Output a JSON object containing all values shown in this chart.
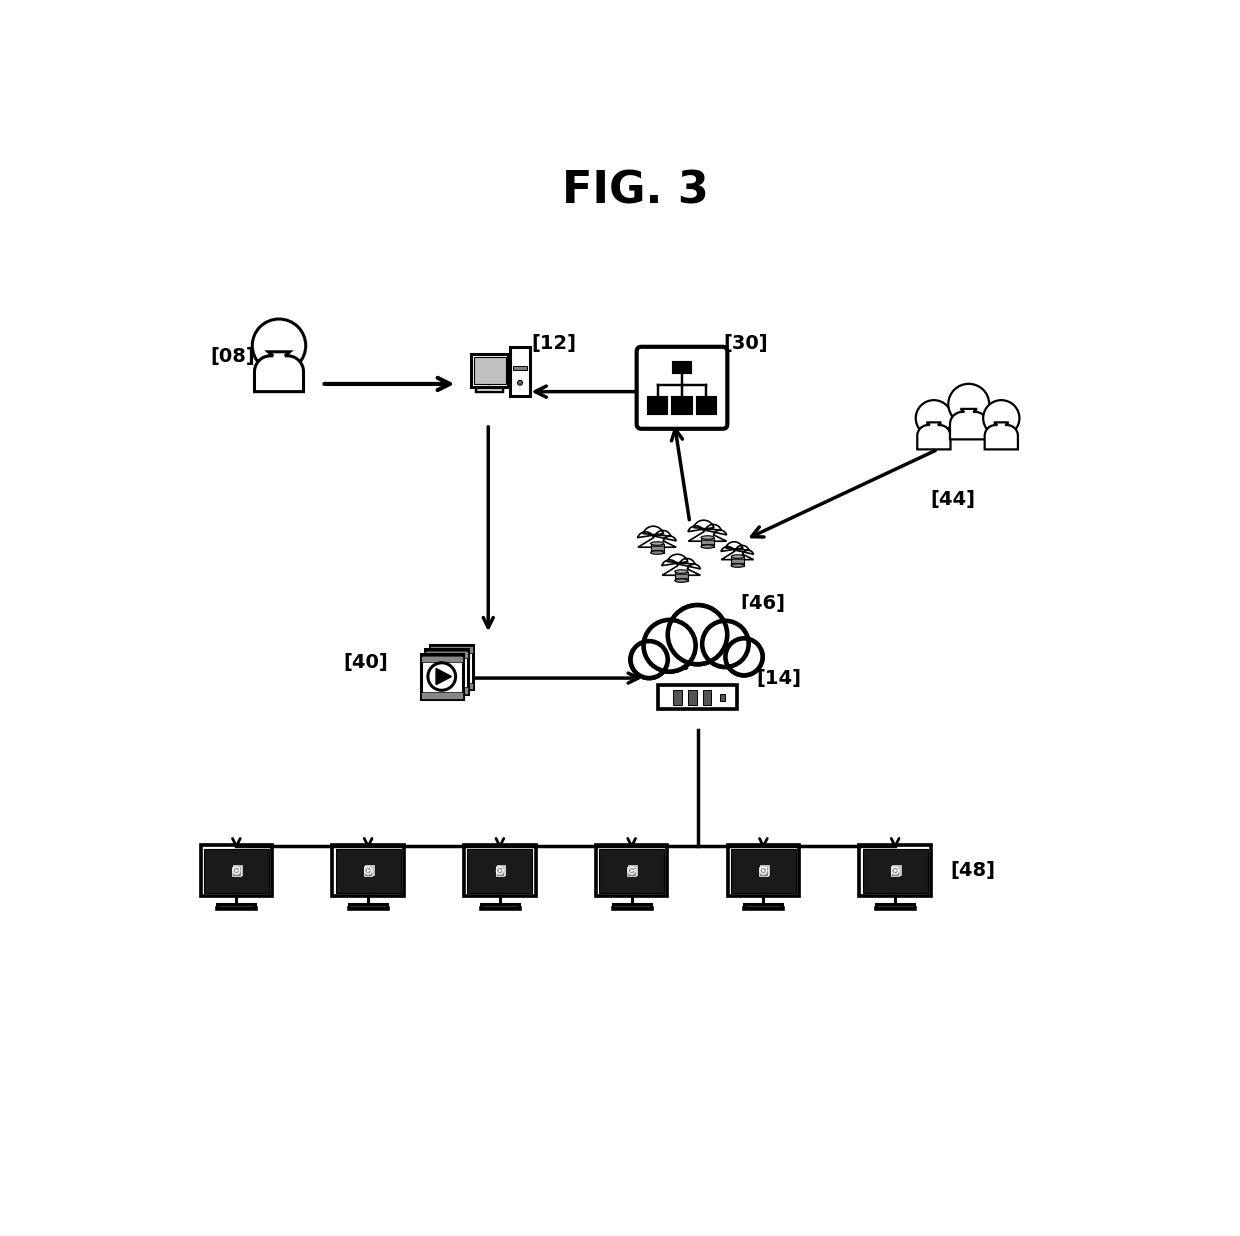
{
  "title": "FIG. 3",
  "title_fontsize": 32,
  "title_fontweight": "bold",
  "bg_color": "#ffffff",
  "fg_color": "#000000",
  "labels": {
    "08": "[08]",
    "12": "[12]",
    "30": "[30]",
    "44": "[44]",
    "46": "[46]",
    "40": "[40]",
    "14": "[14]",
    "48": "[48]"
  },
  "label_fontsize": 14,
  "num_monitors": 6
}
